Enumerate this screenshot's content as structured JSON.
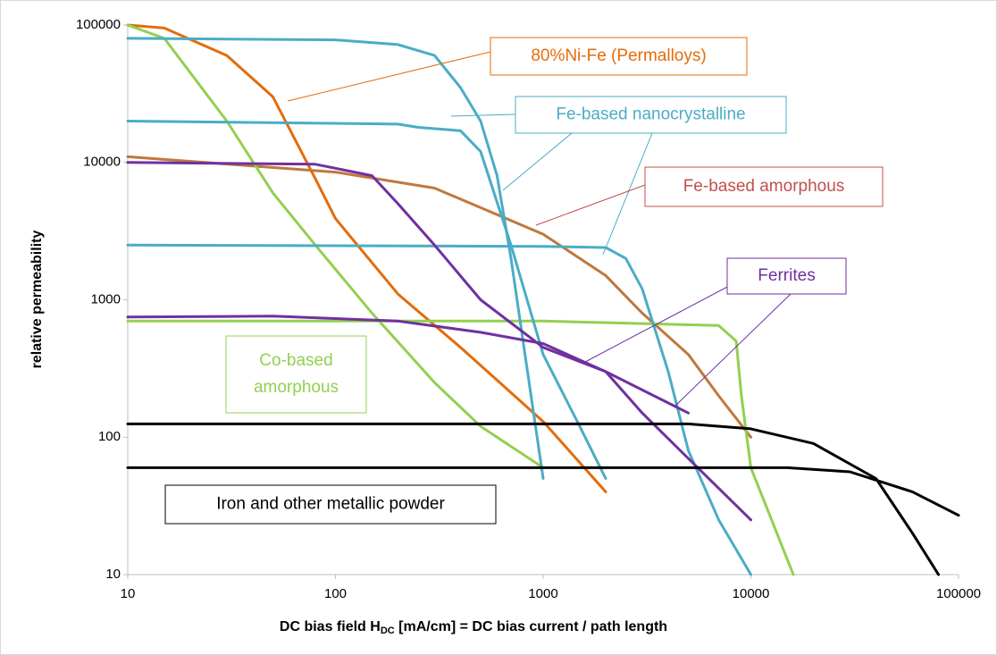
{
  "chart_data": {
    "type": "line",
    "x_log": true,
    "y_log": true,
    "ylabel": "relative permeability",
    "xlabel": [
      "DC bias field H",
      "DC",
      " [mA/cm] = DC bias current / path length"
    ],
    "xlim": [
      10,
      100000
    ],
    "ylim": [
      10,
      100000
    ],
    "xticks": [
      10,
      100,
      1000,
      10000,
      100000
    ],
    "yticks": [
      10,
      100,
      1000,
      10000,
      100000
    ],
    "series": [
      {
        "color": "#e46c0a",
        "x": [
          10,
          15,
          30,
          50,
          80,
          100,
          200,
          400,
          1000,
          2000
        ],
        "values": [
          100000,
          95000,
          60000,
          30000,
          7600,
          3900,
          1100,
          450,
          130,
          40
        ]
      },
      {
        "color": "#c0783c",
        "x": [
          10,
          100,
          300,
          1000,
          2000,
          3000,
          5000,
          7000,
          10000
        ],
        "values": [
          11000,
          8500,
          6500,
          3000,
          1500,
          800,
          400,
          200,
          100
        ]
      },
      {
        "color": "#92d050",
        "x": [
          10,
          15,
          30,
          50,
          80,
          150,
          300,
          500,
          1000
        ],
        "values": [
          100000,
          80000,
          20000,
          6000,
          2500,
          800,
          250,
          120,
          60
        ]
      },
      {
        "color": "#92d050",
        "x": [
          10,
          1000,
          7000,
          8500,
          9000,
          10000,
          16000
        ],
        "values": [
          700,
          700,
          650,
          500,
          200,
          60,
          10
        ]
      },
      {
        "color": "#4bacc6",
        "x": [
          10,
          100,
          200,
          300,
          400,
          500,
          600,
          700,
          800,
          1000
        ],
        "values": [
          80000,
          78000,
          72000,
          60000,
          35000,
          20000,
          8000,
          2000,
          500,
          50
        ]
      },
      {
        "color": "#4bacc6",
        "x": [
          10,
          200,
          250,
          400,
          500,
          700,
          1000,
          1500,
          2000
        ],
        "values": [
          20000,
          19000,
          18000,
          17000,
          12000,
          2500,
          400,
          120,
          50
        ]
      },
      {
        "color": "#4bacc6",
        "x": [
          10,
          1000,
          2000,
          2500,
          3000,
          4000,
          5000,
          7000,
          10000
        ],
        "values": [
          2500,
          2450,
          2400,
          2000,
          1200,
          300,
          80,
          25,
          10
        ]
      },
      {
        "color": "#7030a0",
        "x": [
          10,
          80,
          150,
          200,
          300,
          500,
          1000,
          2000,
          3000,
          5000,
          10000
        ],
        "values": [
          10000,
          9700,
          8000,
          5000,
          2500,
          1000,
          450,
          300,
          150,
          70,
          25
        ]
      },
      {
        "color": "#7030a0",
        "x": [
          10,
          50,
          200,
          500,
          1000,
          2000,
          5000
        ],
        "values": [
          750,
          760,
          700,
          580,
          480,
          300,
          150
        ]
      },
      {
        "color": "#000000",
        "x": [
          10,
          5000,
          10000,
          20000,
          40000,
          60000,
          80000
        ],
        "values": [
          125,
          125,
          115,
          90,
          50,
          20,
          10
        ]
      },
      {
        "color": "#000000",
        "x": [
          10,
          15000,
          30000,
          60000,
          100000
        ],
        "values": [
          60,
          60,
          56,
          40,
          27
        ]
      }
    ],
    "annotations": [
      {
        "lines": [
          "80%Ni-Fe (Permalloys)"
        ],
        "color": "#e46c0a"
      },
      {
        "lines": [
          "Fe-based nanocrystalline"
        ],
        "color": "#4bacc6"
      },
      {
        "lines": [
          "Fe-based amorphous"
        ],
        "color": "#c0504d"
      },
      {
        "lines": [
          "Ferrites"
        ],
        "color": "#7030a0"
      },
      {
        "lines": [
          "Co-based",
          "amorphous"
        ],
        "color": "#92d050"
      },
      {
        "lines": [
          "Iron and other metallic powder"
        ],
        "color": "#000000"
      }
    ]
  }
}
